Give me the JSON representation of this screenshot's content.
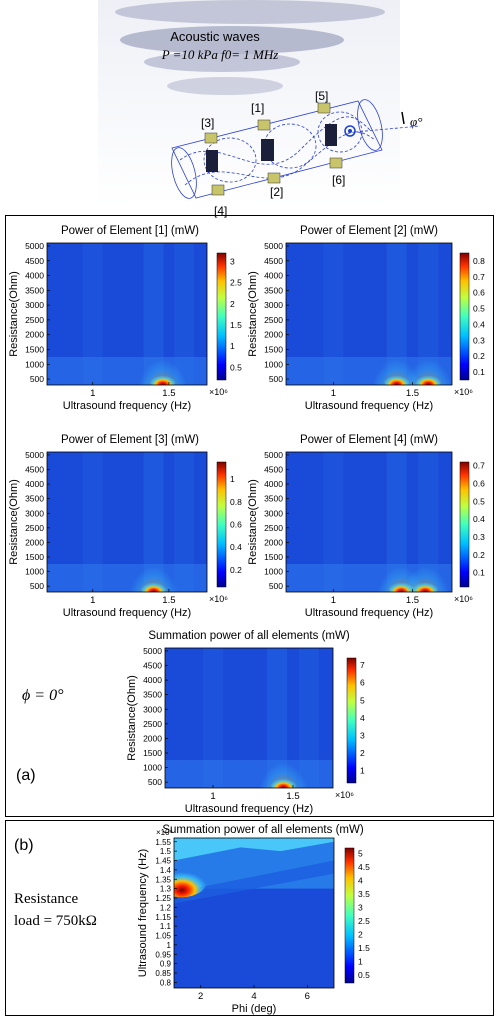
{
  "illustration": {
    "title": "Acoustic waves",
    "params": "P =10 kPa f0= 1 MHz",
    "element_labels": [
      "[1]",
      "[2]",
      "[3]",
      "[4]",
      "[5]",
      "[6]"
    ],
    "angle_label": "φ°"
  },
  "panel_a": {
    "tag": "(a)",
    "phi_label": "ϕ = 0°"
  },
  "panel_b": {
    "tag": "(b)",
    "resistance_label_line1": "Resistance",
    "resistance_label_line2": "load = 750kΩ"
  },
  "colors": {
    "frame": "#000000",
    "colormap": [
      "#00008f",
      "#0000ff",
      "#0080ff",
      "#00ffff",
      "#80ff80",
      "#ffff00",
      "#ff8000",
      "#ff0000",
      "#800000"
    ]
  },
  "chart_data": [
    {
      "type": "heatmap",
      "title": "Power of Element [1] (mW)",
      "xlabel": "Ultrasound frequency (Hz)",
      "ylabel": "Resistance(Ohm)",
      "x_multiplier": "×10⁶",
      "xlim": [
        0.7,
        1.75
      ],
      "ylim": [
        300,
        5100
      ],
      "xticks": [
        "1",
        "1.5"
      ],
      "yticks": [
        "500",
        "1000",
        "1500",
        "2000",
        "2500",
        "3000",
        "3500",
        "4000",
        "4500",
        "5000"
      ],
      "colorbar_ticks": [
        "0.5",
        "1",
        "1.5",
        "2",
        "2.5",
        "3"
      ],
      "clim": [
        0.2,
        3.2
      ],
      "peaks": [
        {
          "x": 1.46,
          "y": 500,
          "value": 3.1
        }
      ]
    },
    {
      "type": "heatmap",
      "title": "Power of Element [2] (mW)",
      "xlabel": "Ultrasound frequency (Hz)",
      "ylabel": "Resistance(Ohm)",
      "x_multiplier": "×10⁶",
      "xlim": [
        0.7,
        1.75
      ],
      "ylim": [
        300,
        5100
      ],
      "xticks": [
        "1",
        "1.5"
      ],
      "yticks": [
        "500",
        "1000",
        "1500",
        "2000",
        "2500",
        "3000",
        "3500",
        "4000",
        "4500",
        "5000"
      ],
      "colorbar_ticks": [
        "0.1",
        "0.2",
        "0.3",
        "0.4",
        "0.5",
        "0.6",
        "0.7",
        "0.8"
      ],
      "clim": [
        0.05,
        0.85
      ],
      "peaks": [
        {
          "x": 1.4,
          "y": 500,
          "value": 0.8
        },
        {
          "x": 1.6,
          "y": 500,
          "value": 0.8
        }
      ]
    },
    {
      "type": "heatmap",
      "title": "Power of Element [3] (mW)",
      "xlabel": "Ultrasound frequency (Hz)",
      "ylabel": "Resistance(Ohm)",
      "x_multiplier": "×10⁶",
      "xlim": [
        0.7,
        1.75
      ],
      "ylim": [
        300,
        5100
      ],
      "xticks": [
        "1",
        "1.5"
      ],
      "yticks": [
        "500",
        "1000",
        "1500",
        "2000",
        "2500",
        "3000",
        "3500",
        "4000",
        "4500",
        "5000"
      ],
      "colorbar_ticks": [
        "0.2",
        "0.4",
        "0.6",
        "0.8",
        "1"
      ],
      "clim": [
        0.05,
        1.15
      ],
      "peaks": [
        {
          "x": 1.4,
          "y": 500,
          "value": 1.1
        }
      ]
    },
    {
      "type": "heatmap",
      "title": "Power of Element [4] (mW)",
      "xlabel": "Ultrasound frequency (Hz)",
      "ylabel": "Resistance(Ohm)",
      "x_multiplier": "×10⁶",
      "xlim": [
        0.7,
        1.75
      ],
      "ylim": [
        300,
        5100
      ],
      "xticks": [
        "1",
        "1.5"
      ],
      "yticks": [
        "500",
        "1000",
        "1500",
        "2000",
        "2500",
        "3000",
        "3500",
        "4000",
        "4500",
        "5000"
      ],
      "colorbar_ticks": [
        "0.1",
        "0.2",
        "0.3",
        "0.4",
        "0.5",
        "0.6",
        "0.7"
      ],
      "clim": [
        0.02,
        0.72
      ],
      "peaks": [
        {
          "x": 1.43,
          "y": 500,
          "value": 0.7
        },
        {
          "x": 1.58,
          "y": 500,
          "value": 0.7
        }
      ]
    },
    {
      "type": "heatmap",
      "title": "Summation power of all elements (mW)",
      "xlabel": "Ultrasound frequency (Hz)",
      "ylabel": "Resistance(Ohm)",
      "x_multiplier": "×10⁶",
      "xlim": [
        0.7,
        1.75
      ],
      "ylim": [
        300,
        5100
      ],
      "xticks": [
        "1",
        "1.5"
      ],
      "yticks": [
        "500",
        "1000",
        "1500",
        "2000",
        "2500",
        "3000",
        "3500",
        "4000",
        "4500",
        "5000"
      ],
      "colorbar_ticks": [
        "1",
        "2",
        "3",
        "4",
        "5",
        "6",
        "7"
      ],
      "clim": [
        0.3,
        7.4
      ],
      "peaks": [
        {
          "x": 1.44,
          "y": 500,
          "value": 7.3
        }
      ]
    },
    {
      "type": "heatmap",
      "title": "Summation power of all elements (mW)",
      "xlabel": "Phi (deg)",
      "ylabel": "Ultrasound frequency (Hz)",
      "y_multiplier": "×10⁶",
      "xlim": [
        1,
        7
      ],
      "ylim": [
        0.77,
        1.57
      ],
      "xticks": [
        "2",
        "4",
        "6"
      ],
      "yticks": [
        "0.8",
        "0.85",
        "0.9",
        "0.95",
        "1",
        "1.05",
        "1.1",
        "1.15",
        "1.2",
        "1.25",
        "1.3",
        "1.35",
        "1.4",
        "1.45",
        "1.5",
        "1.55"
      ],
      "colorbar_ticks": [
        "0.5",
        "1",
        "1.5",
        "2",
        "2.5",
        "3",
        "3.5",
        "4",
        "4.5",
        "5"
      ],
      "clim": [
        0.2,
        5.2
      ],
      "peaks": [
        {
          "x": 1,
          "y": 1.35,
          "value": 5.1
        }
      ]
    }
  ]
}
